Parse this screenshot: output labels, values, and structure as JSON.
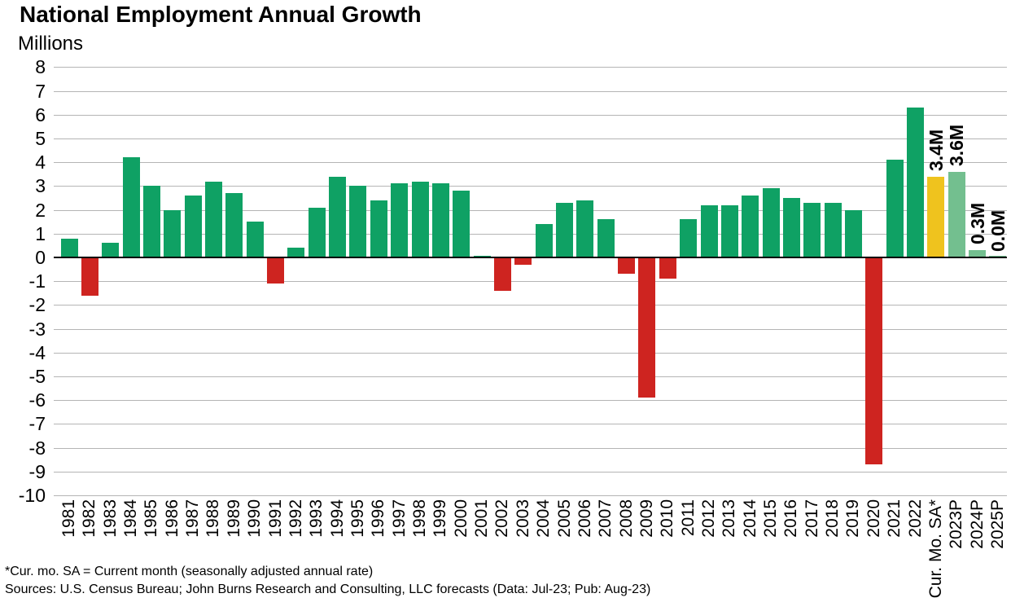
{
  "title": "National Employment Annual Growth",
  "footnotes": [
    "*Cur. mo. SA = Current month (seasonally adjusted annual rate)",
    "Sources: U.S. Census Bureau; John Burns Research and Consulting, LLC forecasts (Data: Jul-23; Pub: Aug-23)"
  ],
  "chart_data": {
    "type": "bar",
    "title": "National Employment Annual Growth",
    "ylabel": "Millions",
    "xlabel": "",
    "ylim": [
      -10,
      8
    ],
    "ytick_step": 1,
    "grid": true,
    "legend": "none",
    "colors": {
      "positive": "#0FA164",
      "negative": "#CE2420",
      "current": "#EFC31E",
      "forecast": "#73BF8F",
      "gridline": "#b5b5b5",
      "axis": "#000000"
    },
    "bars": [
      {
        "label": "1981",
        "value": 0.8
      },
      {
        "label": "1982",
        "value": -1.6
      },
      {
        "label": "1983",
        "value": 0.6
      },
      {
        "label": "1984",
        "value": 4.2
      },
      {
        "label": "1985",
        "value": 3.0
      },
      {
        "label": "1986",
        "value": 2.0
      },
      {
        "label": "1987",
        "value": 2.6
      },
      {
        "label": "1988",
        "value": 3.2
      },
      {
        "label": "1989",
        "value": 2.7
      },
      {
        "label": "1990",
        "value": 1.5
      },
      {
        "label": "1991",
        "value": -1.1
      },
      {
        "label": "1992",
        "value": 0.4
      },
      {
        "label": "1993",
        "value": 2.1
      },
      {
        "label": "1994",
        "value": 3.4
      },
      {
        "label": "1995",
        "value": 3.0
      },
      {
        "label": "1996",
        "value": 2.4
      },
      {
        "label": "1997",
        "value": 3.1
      },
      {
        "label": "1998",
        "value": 3.2
      },
      {
        "label": "1999",
        "value": 3.1
      },
      {
        "label": "2000",
        "value": 2.8
      },
      {
        "label": "2001",
        "value": 0.0
      },
      {
        "label": "2002",
        "value": -1.4
      },
      {
        "label": "2003",
        "value": -0.3
      },
      {
        "label": "2004",
        "value": 1.4
      },
      {
        "label": "2005",
        "value": 2.3
      },
      {
        "label": "2006",
        "value": 2.4
      },
      {
        "label": "2007",
        "value": 1.6
      },
      {
        "label": "2008",
        "value": -0.7
      },
      {
        "label": "2009",
        "value": -5.9
      },
      {
        "label": "2010",
        "value": -0.9
      },
      {
        "label": "2011",
        "value": 1.6
      },
      {
        "label": "2012",
        "value": 2.2
      },
      {
        "label": "2013",
        "value": 2.2
      },
      {
        "label": "2014",
        "value": 2.6
      },
      {
        "label": "2015",
        "value": 2.9
      },
      {
        "label": "2016",
        "value": 2.5
      },
      {
        "label": "2017",
        "value": 2.3
      },
      {
        "label": "2018",
        "value": 2.3
      },
      {
        "label": "2019",
        "value": 2.0
      },
      {
        "label": "2020",
        "value": -8.7
      },
      {
        "label": "2021",
        "value": 4.1
      },
      {
        "label": "2022",
        "value": 6.3
      },
      {
        "label": "Cur. Mo. SA*",
        "value": 3.4,
        "role": "current",
        "annotation": "3.4M"
      },
      {
        "label": "2023P",
        "value": 3.6,
        "role": "forecast",
        "annotation": "3.6M"
      },
      {
        "label": "2024P",
        "value": 0.3,
        "role": "forecast",
        "annotation": "0.3M"
      },
      {
        "label": "2025P",
        "value": 0.0,
        "role": "forecast",
        "annotation": "0.0M"
      }
    ]
  }
}
